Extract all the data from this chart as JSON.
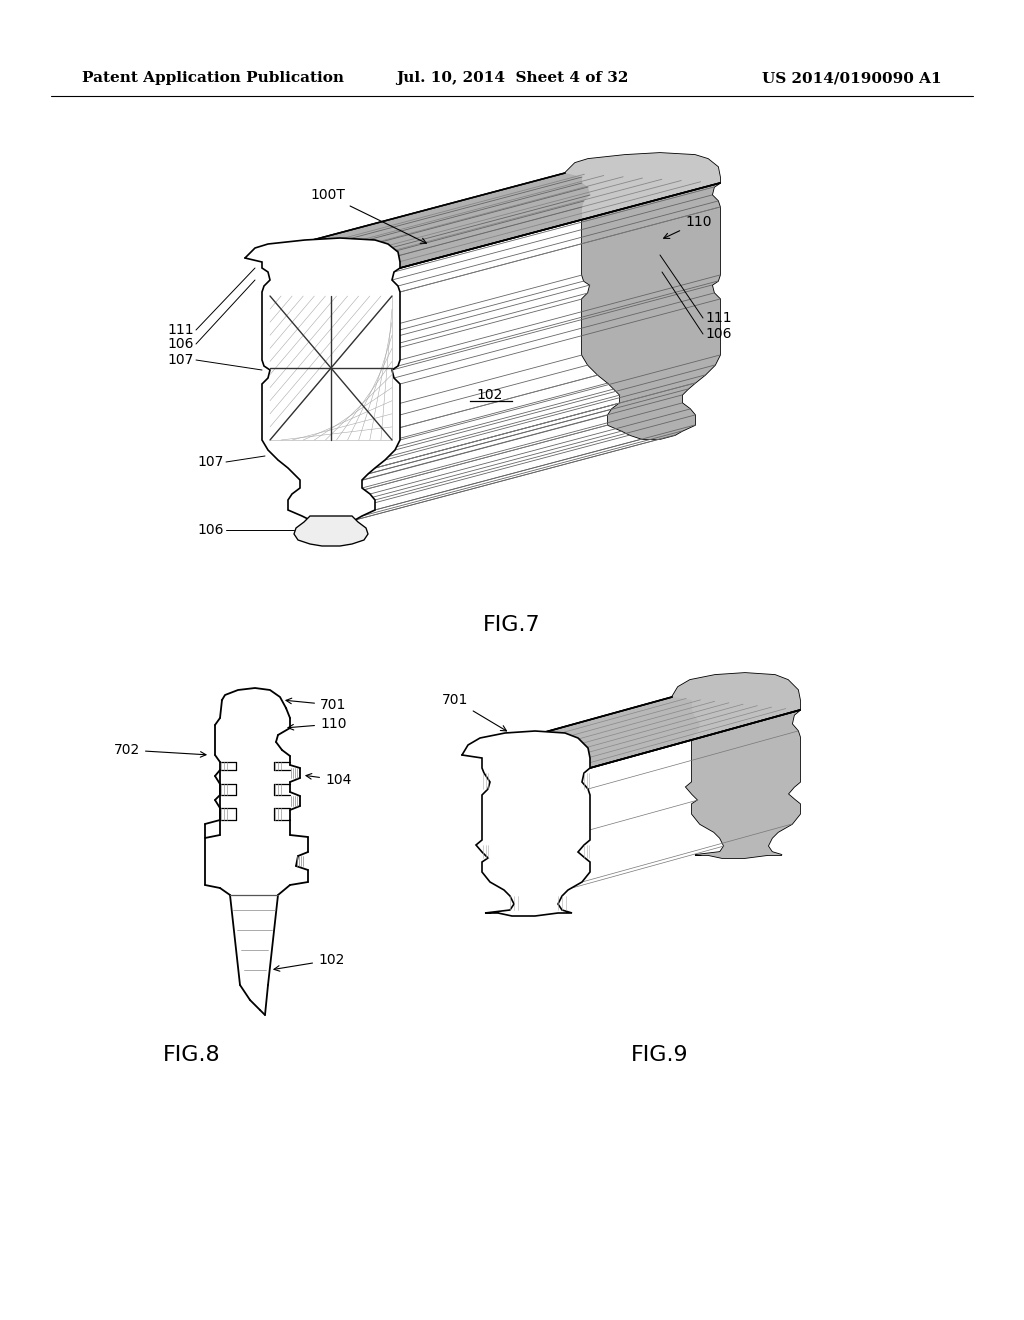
{
  "background_color": "#ffffff",
  "header_left": "Patent Application Publication",
  "header_center": "Jul. 10, 2014  Sheet 4 of 32",
  "header_right": "US 2014/0190090 A1",
  "header_fontsize": 11,
  "label_fontsize": 16,
  "annotation_fontsize": 10,
  "line_color": "#000000",
  "line_width": 1.2,
  "gray_light": "#e0e0e0",
  "gray_mid": "#c0c0c0",
  "gray_dark": "#909090",
  "fig7_label": "FIG.7",
  "fig8_label": "FIG.8",
  "fig9_label": "FIG.9"
}
